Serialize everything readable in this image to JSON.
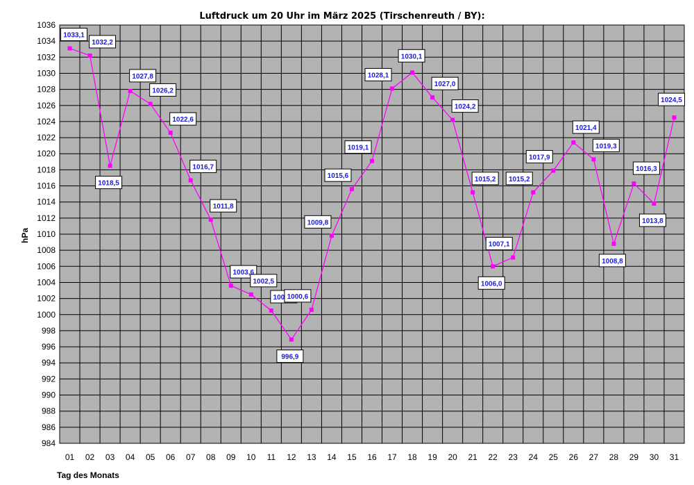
{
  "chart_data": {
    "type": "line",
    "title": "Luftdruck um 20 Uhr im März 2025 (Tirschenreuth / BY):",
    "xlabel": "Tag des Monats",
    "ylabel": "hPa",
    "ylim": [
      984,
      1036
    ],
    "ytick_step": 2,
    "grid": true,
    "legend": "none",
    "plot_background": "#b3b3b3",
    "grid_color": "#000000",
    "line_color": "#ff00ff",
    "label_color": "#1a1adb",
    "categories": [
      "01",
      "02",
      "03",
      "04",
      "05",
      "06",
      "07",
      "08",
      "09",
      "10",
      "11",
      "12",
      "13",
      "14",
      "15",
      "16",
      "17",
      "18",
      "19",
      "20",
      "21",
      "22",
      "23",
      "24",
      "25",
      "26",
      "27",
      "28",
      "29",
      "30",
      "31"
    ],
    "series": [
      {
        "values": [
          1033.1,
          1032.2,
          1018.5,
          1027.8,
          1026.2,
          1022.6,
          1016.7,
          1011.8,
          1003.6,
          1002.5,
          1000.5,
          996.9,
          1000.6,
          1009.8,
          1015.6,
          1019.1,
          1028.1,
          1030.1,
          1027.0,
          1024.2,
          1015.2,
          1006.0,
          1007.1,
          1015.2,
          1017.9,
          1021.4,
          1019.3,
          1008.8,
          1016.3,
          1013.8,
          1024.5
        ],
        "labels": [
          "1033,1",
          "1032,2",
          "1018,5",
          "1027,8",
          "1026,2",
          "1022,6",
          "1016,7",
          "1011,8",
          "1003,6",
          "1002,5",
          "1000,5",
          "996,9",
          "1000,6",
          "1009,8",
          "1015,6",
          "1019,1",
          "1028,1",
          "1030,1",
          "1027,0",
          "1024,2",
          "1015,2",
          "1006,0",
          "1007,1",
          "1015,2",
          "1017,9",
          "1021,4",
          "1019,3",
          "1008,8",
          "1016,3",
          "1013,8",
          "1024,5"
        ]
      }
    ]
  }
}
